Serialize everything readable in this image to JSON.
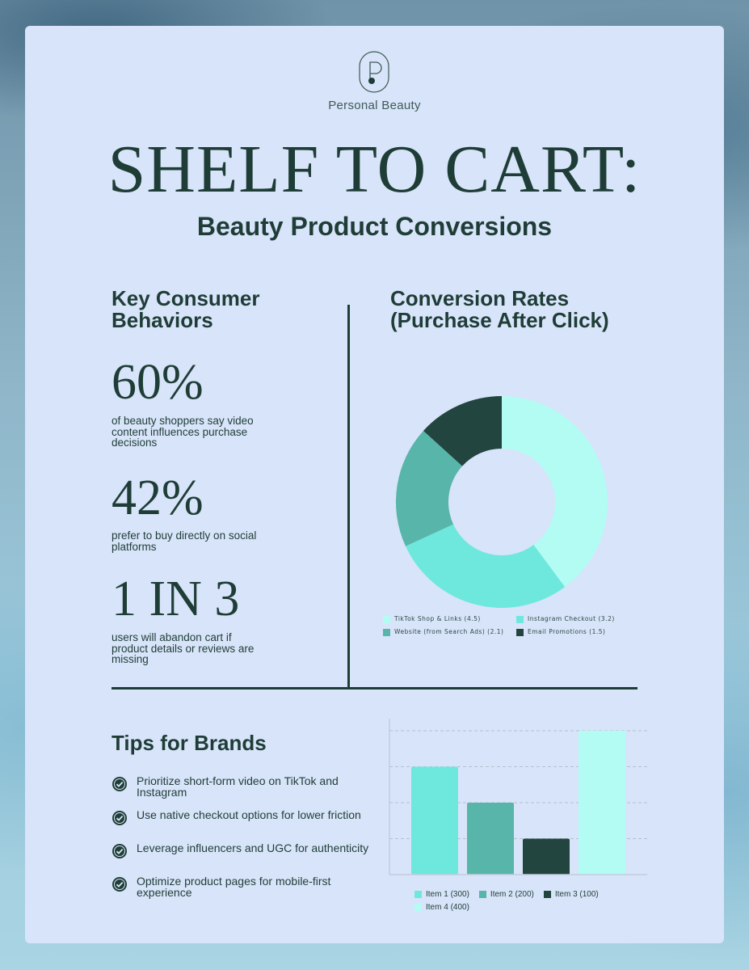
{
  "brand": {
    "name": "Personal Beauty",
    "logo_icon": "p-monogram-icon"
  },
  "header": {
    "title": "SHELF TO CART:",
    "subtitle": "Beauty Product Conversions"
  },
  "behaviors": {
    "heading": "Key Consumer Behaviors",
    "stats": [
      {
        "value": "60%",
        "text": "of beauty shoppers say video content influences purchase decisions"
      },
      {
        "value": "42%",
        "text": "prefer to buy directly on social platforms"
      },
      {
        "value": "1 IN 3",
        "text": "users will abandon cart if product details or reviews are missing"
      }
    ]
  },
  "conversion": {
    "heading": "Conversion Rates (Purchase After Click)"
  },
  "tips": {
    "heading": "Tips for Brands",
    "icon": "check-circle-icon",
    "items": [
      "Prioritize short-form video on TikTok and Instagram",
      "Use native checkout options for lower friction",
      "Leverage influencers and UGC for authenticity",
      "Optimize product pages for mobile-first experience"
    ]
  },
  "chart_data": [
    {
      "type": "pie",
      "variant": "donut",
      "title": "Conversion Rates (Purchase After Click)",
      "categories": [
        "TikTok Shop & Links (4.5)",
        "Instagram Checkout (3.2)",
        "Website (from Search Ads) (2.1)",
        "Email Promotions (1.5)"
      ],
      "values": [
        4.5,
        3.2,
        2.1,
        1.5
      ],
      "colors": [
        "#b3fcf3",
        "#6ee8dd",
        "#58b5aa",
        "#22463f"
      ],
      "legend": "bottom"
    },
    {
      "type": "bar",
      "categories": [
        "Item 1 (300)",
        "Item 2 (200)",
        "Item 3 (100)",
        "Item 4 (400)"
      ],
      "values": [
        300,
        200,
        100,
        400
      ],
      "colors": [
        "#6ee8dd",
        "#58b5aa",
        "#22463f",
        "#b3fcf3"
      ],
      "ylim": [
        0,
        400
      ],
      "grid": true,
      "legend": "bottom"
    }
  ]
}
